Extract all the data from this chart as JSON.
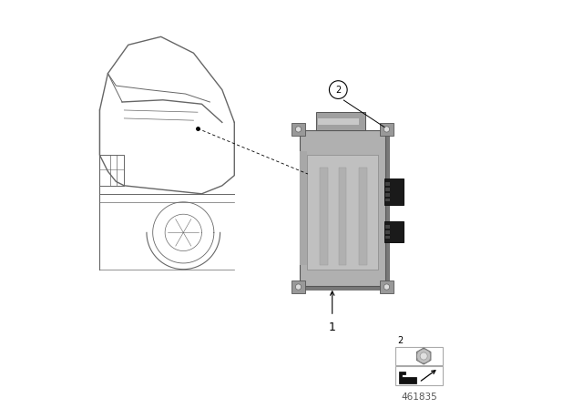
{
  "background_color": "#ffffff",
  "diagram_number": "461835",
  "car_outline_color": "#666666",
  "module_color": "#b0b0b0",
  "module_shadow_color": "#888888",
  "module_dark_color": "#909090",
  "line_color": "#000000",
  "connector_color": "#2a2a2a",
  "tab_color": "#999999",
  "mx": 0.52,
  "my": 0.3,
  "mw": 0.21,
  "mh": 0.38
}
